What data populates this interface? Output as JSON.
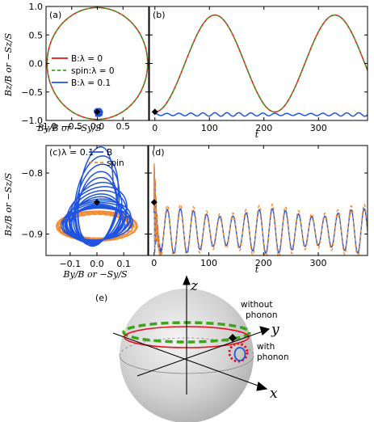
{
  "colors": {
    "red": "#e8131f",
    "green": "#3aa515",
    "blue": "#1f54e0",
    "orange": "#f58a2e"
  },
  "chart_data": [
    {
      "panel": "(a)",
      "type": "line",
      "xlabel": "By/B or −Sy/S",
      "ylabel": "Bz/B or −Sz/S",
      "xlim": [
        -1.0,
        1.0
      ],
      "ylim": [
        -1.0,
        1.0
      ],
      "xticks": [
        "−1.0",
        "−0.5",
        "0.0",
        "0.5"
      ],
      "yticks": [
        "1.0",
        "0.5",
        "0.0",
        "−0.5",
        "−1.0"
      ],
      "legend": {
        "position": "center",
        "entries": [
          "B:λ = 0",
          "spin:λ = 0",
          "B:λ = 0.1"
        ]
      },
      "series": [
        {
          "name": "B:λ = 0",
          "color": "red",
          "style": "solid",
          "shape": "circle",
          "center": [
            0,
            0
          ],
          "radius": 0.98
        },
        {
          "name": "spin:λ = 0",
          "color": "green",
          "style": "dashed",
          "shape": "circle",
          "center": [
            0,
            0
          ],
          "radius": 0.98
        },
        {
          "name": "B:λ = 0.1",
          "color": "blue",
          "style": "solid",
          "shape": "cluster",
          "center": [
            0.02,
            -0.86
          ]
        }
      ],
      "marker": {
        "x": 0.0,
        "y": -0.85,
        "symbol": "diamond"
      }
    },
    {
      "panel": "(b)",
      "type": "line",
      "xlabel": "t",
      "ylabel": "",
      "xlim": [
        -10,
        390
      ],
      "ylim": [
        -1.0,
        1.0
      ],
      "xticks": [
        "0",
        "100",
        "200",
        "300"
      ],
      "series": [
        {
          "name": "B:λ = 0",
          "color": "red",
          "style": "solid",
          "kind": "cos",
          "center": 0.0,
          "amplitude": 0.85,
          "period": 220,
          "phase": 0
        },
        {
          "name": "spin:λ = 0",
          "color": "green",
          "style": "dashed",
          "kind": "cos",
          "center": 0.0,
          "amplitude": 0.85,
          "period": 220,
          "phase": 0
        },
        {
          "name": "B:λ = 0.1",
          "color": "blue",
          "style": "solid",
          "kind": "wiggle",
          "center": -0.895,
          "amplitude": 0.025,
          "period": 22
        }
      ],
      "marker": {
        "x": 0.0,
        "y": -0.85,
        "symbol": "diamond"
      }
    },
    {
      "panel": "(c)",
      "type": "line",
      "annotation": "λ = 0.1",
      "xlabel": "By/B or −Sy/S",
      "ylabel": "Bz/B or −Sz/S",
      "xlim": [
        -0.19,
        0.19
      ],
      "ylim": [
        -0.935,
        -0.755
      ],
      "xticks": [
        "−0.1",
        "0.0",
        "0.1"
      ],
      "yticks": [
        "−0.8",
        "−0.9"
      ],
      "legend": {
        "position": "top-right",
        "entries": [
          "B",
          "spin"
        ]
      },
      "series": [
        {
          "name": "B",
          "color": "blue",
          "style": "solid",
          "kind": "loops",
          "center": [
            0.0,
            -0.885
          ]
        },
        {
          "name": "spin",
          "color": "orange",
          "style": "dashed",
          "kind": "loops",
          "center": [
            0.0,
            -0.885
          ]
        }
      ],
      "marker": {
        "x": 0.0,
        "y": -0.848,
        "symbol": "diamond"
      }
    },
    {
      "panel": "(d)",
      "type": "line",
      "xlabel": "t",
      "ylabel": "",
      "xlim": [
        -10,
        390
      ],
      "ylim": [
        -0.935,
        -0.755
      ],
      "xticks": [
        "0",
        "100",
        "200",
        "300"
      ],
      "series": [
        {
          "name": "B",
          "color": "blue",
          "style": "solid",
          "kind": "beat",
          "center": -0.895,
          "amplitude": 0.03,
          "period": 24
        },
        {
          "name": "spin",
          "color": "orange",
          "style": "dashed",
          "kind": "beat",
          "center": -0.895,
          "amplitude": 0.036,
          "period": 24
        }
      ],
      "marker": {
        "x": 0.0,
        "y": -0.848,
        "symbol": "diamond"
      }
    }
  ],
  "sphere": {
    "panel": "(e)",
    "axes": [
      "z",
      "y",
      "x"
    ],
    "without_phonon": [
      "without",
      "phonon"
    ],
    "with_phonon": [
      "with",
      "phonon"
    ]
  }
}
